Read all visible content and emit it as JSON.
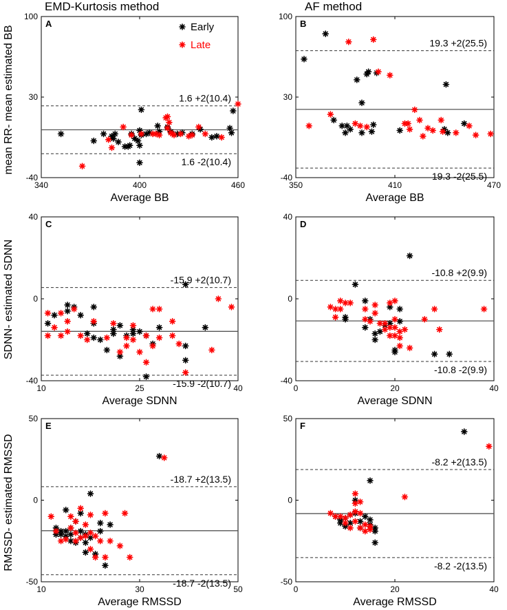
{
  "headers": {
    "left": "EMD-Kurtosis method",
    "right": "AF method"
  },
  "ylabels": {
    "row1": "mean RR- mean estimated BB",
    "row2": "SDNN- estimated SDNN",
    "row3": "RMSSD- estimated RMSSD"
  },
  "legend": {
    "early": "Early",
    "late": "Late",
    "early_color": "#000000",
    "late_color": "#ff0000"
  },
  "chart_data": [
    {
      "type": "scatter",
      "panel": "A",
      "xlabel": "Average BB",
      "xlim": [
        340,
        460
      ],
      "ylim": [
        -40,
        100
      ],
      "xticks": [
        "340",
        "400",
        "460"
      ],
      "yticks": [
        "-40",
        "30",
        "100"
      ],
      "mean": 1.6,
      "upper": 22.4,
      "lower": -19.2,
      "upper_label": "1.6 +2(10.4)",
      "lower_label": "1.6 -2(10.4)",
      "early": [
        [
          352,
          -2
        ],
        [
          372,
          -8
        ],
        [
          378,
          -2
        ],
        [
          383,
          -4
        ],
        [
          384,
          -6
        ],
        [
          385,
          -2
        ],
        [
          387,
          -9
        ],
        [
          391,
          -13
        ],
        [
          393,
          -13
        ],
        [
          394,
          -12
        ],
        [
          395,
          -2
        ],
        [
          397,
          -6
        ],
        [
          399,
          -8
        ],
        [
          400,
          -12
        ],
        [
          400,
          1
        ],
        [
          401,
          -3
        ],
        [
          401,
          19
        ],
        [
          404,
          -2
        ],
        [
          406,
          -1
        ],
        [
          400,
          -27
        ],
        [
          411,
          5
        ],
        [
          412,
          0
        ],
        [
          417,
          4
        ],
        [
          419,
          0
        ],
        [
          423,
          -2
        ],
        [
          426,
          -1
        ],
        [
          432,
          -2
        ],
        [
          437,
          2
        ],
        [
          444,
          -5
        ],
        [
          447,
          -4
        ],
        [
          455,
          3
        ],
        [
          456,
          -1
        ],
        [
          457,
          18
        ]
      ],
      "late": [
        [
          365,
          -30
        ],
        [
          381,
          -7
        ],
        [
          383,
          -14
        ],
        [
          390,
          4
        ],
        [
          395,
          -3
        ],
        [
          401,
          -2
        ],
        [
          408,
          -2
        ],
        [
          410,
          -2
        ],
        [
          412,
          -3
        ],
        [
          416,
          12
        ],
        [
          417,
          13
        ],
        [
          417,
          3
        ],
        [
          418,
          8
        ],
        [
          419,
          -1
        ],
        [
          420,
          -2
        ],
        [
          421,
          -3
        ],
        [
          425,
          -2
        ],
        [
          430,
          -4
        ],
        [
          432,
          -3
        ],
        [
          436,
          4
        ],
        [
          440,
          -2
        ],
        [
          450,
          -5
        ],
        [
          460,
          24
        ]
      ]
    },
    {
      "type": "scatter",
      "panel": "B",
      "xlabel": "Average BB",
      "xlim": [
        350,
        470
      ],
      "ylim": [
        -40,
        100
      ],
      "xticks": [
        "350",
        "410",
        "470"
      ],
      "yticks": [
        "-40",
        "30",
        "100"
      ],
      "mean": 19.3,
      "upper": 70.3,
      "lower": -31.7,
      "upper_label": "19.3 +2(25.5)",
      "lower_label": "19.3 -2(25.5)",
      "early": [
        [
          355,
          63
        ],
        [
          368,
          85
        ],
        [
          373,
          10
        ],
        [
          378,
          5
        ],
        [
          380,
          -1
        ],
        [
          381,
          5
        ],
        [
          383,
          2
        ],
        [
          387,
          45
        ],
        [
          390,
          -1
        ],
        [
          390,
          25
        ],
        [
          393,
          50
        ],
        [
          394,
          52
        ],
        [
          396,
          0
        ],
        [
          397,
          6
        ],
        [
          399,
          51
        ],
        [
          413,
          1
        ],
        [
          440,
          2
        ],
        [
          441,
          41
        ],
        [
          442,
          -1
        ],
        [
          452,
          7
        ]
      ],
      "late": [
        [
          358,
          5
        ],
        [
          371,
          15
        ],
        [
          382,
          78
        ],
        [
          386,
          7
        ],
        [
          389,
          5
        ],
        [
          393,
          4
        ],
        [
          397,
          80
        ],
        [
          400,
          52
        ],
        [
          407,
          49
        ],
        [
          416,
          7
        ],
        [
          418,
          7
        ],
        [
          419,
          2
        ],
        [
          422,
          19
        ],
        [
          425,
          10
        ],
        [
          427,
          -4
        ],
        [
          430,
          3
        ],
        [
          433,
          1
        ],
        [
          438,
          10
        ],
        [
          439,
          0
        ],
        [
          447,
          -1
        ],
        [
          455,
          5
        ],
        [
          459,
          -3
        ],
        [
          468,
          -2
        ]
      ]
    },
    {
      "type": "scatter",
      "panel": "C",
      "xlabel": "Average SDNN",
      "xlim": [
        10,
        40
      ],
      "ylim": [
        -40,
        40
      ],
      "xticks": [
        "10",
        "25",
        "40"
      ],
      "yticks": [
        "-40",
        "0",
        "40"
      ],
      "mean": -15.9,
      "upper": 5.5,
      "lower": -37.3,
      "upper_label": "-15.9 +2(10.7)",
      "lower_label": "-15.9 -2(10.7)",
      "early": [
        [
          11,
          -12
        ],
        [
          12,
          -8
        ],
        [
          14,
          -3
        ],
        [
          14,
          -6
        ],
        [
          15,
          -4
        ],
        [
          16,
          -8
        ],
        [
          17,
          -17
        ],
        [
          18,
          -4
        ],
        [
          18,
          -12
        ],
        [
          18,
          -19
        ],
        [
          19,
          -20
        ],
        [
          20,
          -25
        ],
        [
          21,
          -17
        ],
        [
          21,
          -15
        ],
        [
          22,
          -28
        ],
        [
          22,
          -13
        ],
        [
          23,
          -18
        ],
        [
          24,
          -15
        ],
        [
          24,
          -17
        ],
        [
          25,
          -16
        ],
        [
          26,
          -18
        ],
        [
          27,
          -22
        ],
        [
          26,
          -38
        ],
        [
          28,
          -14
        ],
        [
          32,
          7
        ],
        [
          32,
          -30
        ],
        [
          32,
          -23
        ],
        [
          35,
          -14
        ]
      ],
      "late": [
        [
          11,
          -18
        ],
        [
          11,
          -7
        ],
        [
          12,
          -14
        ],
        [
          13,
          -7
        ],
        [
          13,
          -18
        ],
        [
          14,
          -11
        ],
        [
          14,
          -16
        ],
        [
          15,
          -5
        ],
        [
          16,
          -18
        ],
        [
          17,
          -20
        ],
        [
          18,
          -11
        ],
        [
          20,
          -19
        ],
        [
          21,
          -12
        ],
        [
          22,
          -26
        ],
        [
          23,
          -19
        ],
        [
          23,
          -23
        ],
        [
          24,
          -13
        ],
        [
          24,
          -20
        ],
        [
          25,
          -26
        ],
        [
          26,
          -18
        ],
        [
          26,
          -31
        ],
        [
          27,
          -5
        ],
        [
          27,
          -23
        ],
        [
          28,
          -19
        ],
        [
          28,
          -5
        ],
        [
          30,
          -11
        ],
        [
          30,
          -18
        ],
        [
          31,
          -22
        ],
        [
          32,
          -36
        ],
        [
          36,
          -25
        ],
        [
          37,
          0
        ],
        [
          39,
          -4
        ]
      ]
    },
    {
      "type": "scatter",
      "panel": "D",
      "xlabel": "Average SDNN",
      "xlim": [
        0,
        40
      ],
      "ylim": [
        -40,
        40
      ],
      "xticks": [
        "0",
        "20",
        "40"
      ],
      "yticks": [
        "-40",
        "0",
        "40"
      ],
      "mean": -10.8,
      "upper": 9.0,
      "lower": -30.6,
      "upper_label": "-10.8 +2(9.9)",
      "lower_label": "-10.8 -2(9.9)",
      "early": [
        [
          10,
          -9
        ],
        [
          10,
          -10
        ],
        [
          12,
          7
        ],
        [
          14,
          -1
        ],
        [
          14,
          -14
        ],
        [
          15,
          -10
        ],
        [
          16,
          -17
        ],
        [
          16,
          -20
        ],
        [
          17,
          -16
        ],
        [
          18,
          -13
        ],
        [
          19,
          -12
        ],
        [
          19,
          -4
        ],
        [
          20,
          -25
        ],
        [
          20,
          -26
        ],
        [
          21,
          -5
        ],
        [
          21,
          -11
        ],
        [
          23,
          21
        ],
        [
          28,
          -27
        ],
        [
          31,
          -27
        ]
      ],
      "late": [
        [
          7,
          -4
        ],
        [
          8,
          -5
        ],
        [
          8,
          -9
        ],
        [
          9,
          -1
        ],
        [
          9,
          -5
        ],
        [
          10,
          -2
        ],
        [
          11,
          -2
        ],
        [
          14,
          -5
        ],
        [
          14,
          -10
        ],
        [
          15,
          -11
        ],
        [
          16,
          -3
        ],
        [
          16,
          -7
        ],
        [
          17,
          -12
        ],
        [
          18,
          -15
        ],
        [
          18,
          -12
        ],
        [
          19,
          -14
        ],
        [
          19,
          -18
        ],
        [
          19,
          -2
        ],
        [
          20,
          -10
        ],
        [
          20,
          -14
        ],
        [
          20,
          -18
        ],
        [
          20,
          -1
        ],
        [
          21,
          -16
        ],
        [
          21,
          -19
        ],
        [
          21,
          -23
        ],
        [
          22,
          -15
        ],
        [
          23,
          -24
        ],
        [
          26,
          -10
        ],
        [
          28,
          -5
        ],
        [
          29,
          -15
        ],
        [
          38,
          -5
        ]
      ]
    },
    {
      "type": "scatter",
      "panel": "E",
      "xlabel": "Average RMSSD",
      "xlim": [
        10,
        50
      ],
      "ylim": [
        -50,
        50
      ],
      "xticks": [
        "10",
        "30",
        "50"
      ],
      "yticks": [
        "-50",
        "0",
        "50"
      ],
      "mean": -18.7,
      "upper": 8.3,
      "lower": -45.7,
      "upper_label": "-18.7 +2(13.5)",
      "lower_label": "-18.7 -2(13.5)",
      "early": [
        [
          13,
          -17
        ],
        [
          13,
          -21
        ],
        [
          14,
          -19
        ],
        [
          14,
          -21
        ],
        [
          15,
          -6
        ],
        [
          15,
          -19
        ],
        [
          15,
          -22
        ],
        [
          16,
          -17
        ],
        [
          16,
          -21
        ],
        [
          16,
          -25
        ],
        [
          17,
          -13
        ],
        [
          17,
          -26
        ],
        [
          18,
          -8
        ],
        [
          18,
          -19
        ],
        [
          18,
          -23
        ],
        [
          19,
          -21
        ],
        [
          19,
          -26
        ],
        [
          19,
          -32
        ],
        [
          20,
          4
        ],
        [
          20,
          -23
        ],
        [
          21,
          -33
        ],
        [
          22,
          -14
        ],
        [
          22,
          -19
        ],
        [
          23,
          -40
        ],
        [
          24,
          -15
        ],
        [
          34,
          27
        ]
      ],
      "late": [
        [
          12,
          -10
        ],
        [
          13,
          -19
        ],
        [
          14,
          -25
        ],
        [
          15,
          -24
        ],
        [
          16,
          -10
        ],
        [
          16,
          -17
        ],
        [
          17,
          -13
        ],
        [
          17,
          -20
        ],
        [
          17,
          -25
        ],
        [
          18,
          -5
        ],
        [
          18,
          -23
        ],
        [
          19,
          -15
        ],
        [
          19,
          -22
        ],
        [
          20,
          -9
        ],
        [
          20,
          -20
        ],
        [
          20,
          -30
        ],
        [
          21,
          -22
        ],
        [
          21,
          -35
        ],
        [
          22,
          -25
        ],
        [
          23,
          -8
        ],
        [
          23,
          -35
        ],
        [
          24,
          -25
        ],
        [
          26,
          -28
        ],
        [
          27,
          -8
        ],
        [
          28,
          -35
        ],
        [
          35,
          26
        ]
      ]
    },
    {
      "type": "scatter",
      "panel": "F",
      "xlabel": "Average RMSSD",
      "xlim": [
        0,
        40
      ],
      "ylim": [
        -50,
        50
      ],
      "xticks": [
        "0",
        "20",
        "40"
      ],
      "yticks": [
        "-50",
        "0",
        "50"
      ],
      "mean": -8.2,
      "upper": 18.8,
      "lower": -35.2,
      "upper_label": "-8.2 +2(13.5)",
      "lower_label": "-8.2 -2(13.5)",
      "early": [
        [
          8,
          -10
        ],
        [
          9,
          -12
        ],
        [
          9,
          -14
        ],
        [
          10,
          -11
        ],
        [
          10,
          -16
        ],
        [
          11,
          -9
        ],
        [
          11,
          -14
        ],
        [
          12,
          0
        ],
        [
          12,
          -8
        ],
        [
          13,
          -13
        ],
        [
          13,
          -17
        ],
        [
          14,
          -10
        ],
        [
          15,
          12
        ],
        [
          15,
          -12
        ],
        [
          15,
          -15
        ],
        [
          16,
          -17
        ],
        [
          16,
          -19
        ],
        [
          16,
          -26
        ],
        [
          34,
          42
        ]
      ],
      "late": [
        [
          7,
          -8
        ],
        [
          8,
          -10
        ],
        [
          9,
          -10
        ],
        [
          10,
          -11
        ],
        [
          10,
          -14
        ],
        [
          11,
          -9
        ],
        [
          11,
          -17
        ],
        [
          12,
          -2
        ],
        [
          12,
          -7
        ],
        [
          12,
          -13
        ],
        [
          12,
          4
        ],
        [
          13,
          -1
        ],
        [
          13,
          -8
        ],
        [
          13,
          -17
        ],
        [
          14,
          -15
        ],
        [
          14,
          -19
        ],
        [
          15,
          -16
        ],
        [
          15,
          -18
        ],
        [
          22,
          2
        ],
        [
          39,
          33
        ]
      ]
    }
  ]
}
